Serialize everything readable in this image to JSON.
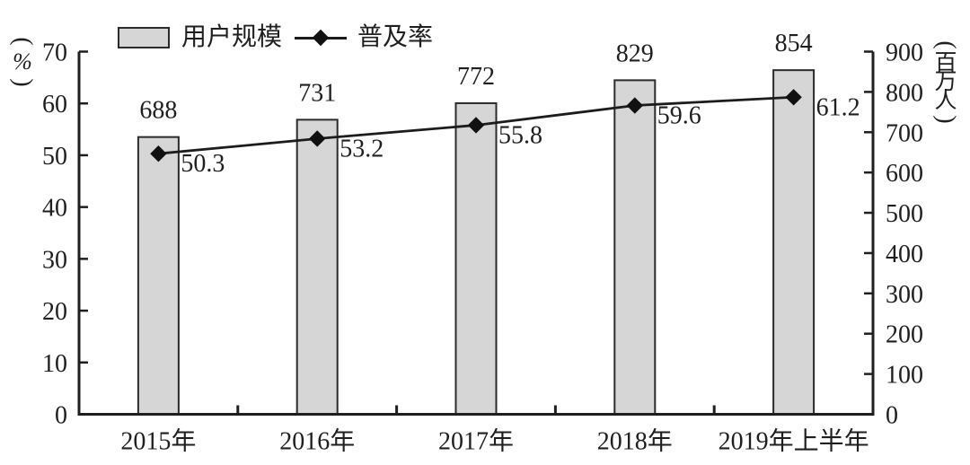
{
  "chart_data": {
    "type": "bar+line",
    "categories": [
      "2015年",
      "2016年",
      "2017年",
      "2018年",
      "2019年上半年"
    ],
    "series": [
      {
        "name": "用户规模",
        "chart_type": "bar",
        "axis": "right",
        "values": [
          688,
          731,
          772,
          829,
          854
        ]
      },
      {
        "name": "普及率",
        "chart_type": "line",
        "axis": "left",
        "values": [
          50.3,
          53.2,
          55.8,
          59.6,
          61.2
        ]
      }
    ],
    "left_axis": {
      "unit": "（%）",
      "min": 0,
      "max": 70,
      "step": 10,
      "tick_labels": [
        "0",
        "10",
        "20",
        "30",
        "40",
        "50",
        "60",
        "70"
      ]
    },
    "right_axis": {
      "unit": "（百万人）",
      "min": 0,
      "max": 900,
      "step": 100,
      "tick_labels": [
        "0",
        "100",
        "200",
        "300",
        "400",
        "500",
        "600",
        "700",
        "800",
        "900"
      ]
    },
    "legend": {
      "position": "top",
      "items": [
        {
          "label": "用户规模",
          "marker": "bar-swatch"
        },
        {
          "label": "普及率",
          "marker": "line-diamond"
        }
      ]
    },
    "grid": false,
    "title": "",
    "colors": {
      "bar_fill": "#d6d6d6",
      "bar_border": "#2b2b2b",
      "line": "#1c1c1c",
      "marker": "#111111",
      "axis": "#1f1f1f",
      "text": "#1f1f1f",
      "background": "#ffffff"
    }
  }
}
